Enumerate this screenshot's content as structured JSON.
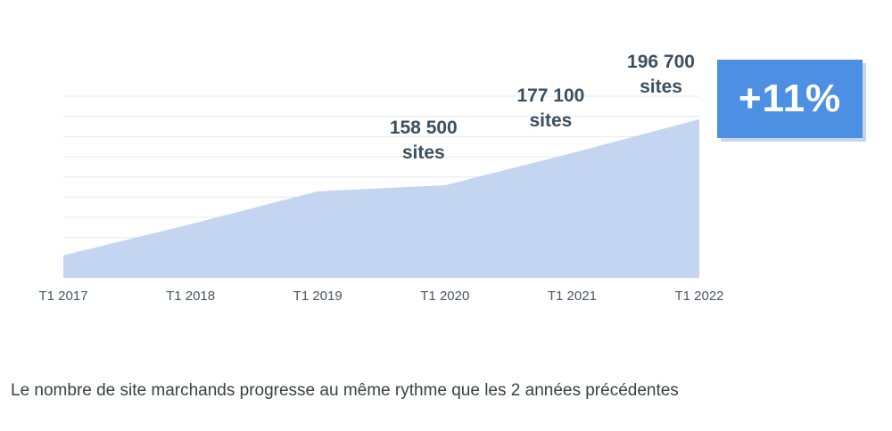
{
  "chart_data": {
    "type": "area",
    "x_labels": [
      "T1 2017",
      "T1 2018",
      "T1 2019",
      "T1 2020",
      "T1 2021",
      "T1 2022"
    ],
    "values": [
      118000,
      136000,
      155000,
      158500,
      177100,
      196700
    ],
    "data_labels": [
      {
        "index": 3,
        "line1": "158 500",
        "line2": "sites"
      },
      {
        "index": 4,
        "line1": "177 100",
        "line2": "sites"
      },
      {
        "index": 5,
        "line1": "196 700",
        "line2": "sites"
      }
    ],
    "ylim": [
      105000,
      210000
    ],
    "grid": true,
    "fill_color": "#c3d5f0"
  },
  "badge": {
    "text": "+11%"
  },
  "caption": "Le nombre de site marchands progresse au même rythme que les 2 années précédentes"
}
